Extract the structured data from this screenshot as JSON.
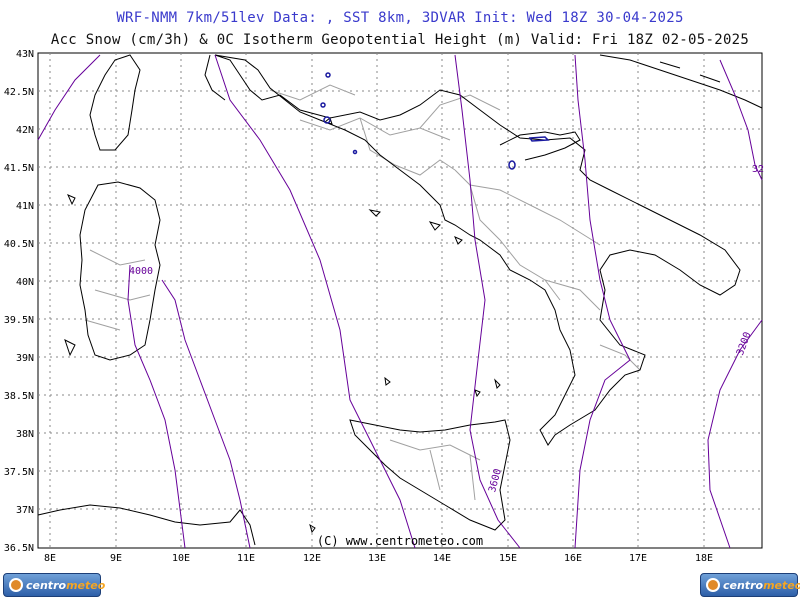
{
  "header": {
    "line1": "WRF-NMM 7km/51lev  Data: , SST 8km, 3DVAR  Init: Wed 18Z 30-04-2025",
    "line2": "Acc Snow (cm/3h) & 0C Isotherm Geopotential Height (m)  Valid: Fri 18Z 02-05-2025"
  },
  "map": {
    "lat_labels": [
      "43N",
      "42.5N",
      "42N",
      "41.5N",
      "41N",
      "40.5N",
      "40N",
      "39.5N",
      "39N",
      "38.5N",
      "38N",
      "37.5N",
      "37N",
      "36.5N"
    ],
    "lon_labels": [
      "8E",
      "9E",
      "10E",
      "11E",
      "12E",
      "13E",
      "14E",
      "15E",
      "16E",
      "17E",
      "18E"
    ],
    "contour_labels": [
      "4000",
      "3600",
      "3200",
      "32"
    ],
    "copyright": "(C) www.centrometeo.com",
    "colors": {
      "land_outline": "#000000",
      "regions": "#a0a0a0",
      "isotherm": "#660099",
      "snow": "#1a1aa0",
      "grid": "#8a8a8a"
    }
  },
  "logos": {
    "left_text_a": "centro",
    "left_text_b": "meteo",
    "right_text_a": "centro",
    "right_text_b": "meteo"
  }
}
